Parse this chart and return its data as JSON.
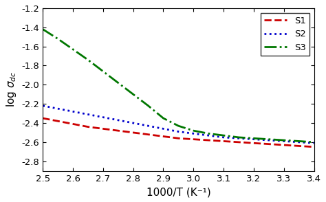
{
  "xlabel": "1000/T (K⁻¹)",
  "ylabel": "log σ_{dc}",
  "xlim": [
    2.5,
    3.4
  ],
  "ylim": [
    -2.9,
    -1.2
  ],
  "xticks": [
    2.5,
    2.6,
    2.7,
    2.8,
    2.9,
    3.0,
    3.1,
    3.2,
    3.3,
    3.4
  ],
  "yticks": [
    -2.8,
    -2.6,
    -2.4,
    -2.2,
    -2.0,
    -1.8,
    -1.6,
    -1.4,
    -1.2
  ],
  "S1": {
    "x": [
      2.5,
      2.55,
      2.6,
      2.65,
      2.7,
      2.75,
      2.8,
      2.85,
      2.9,
      2.95,
      3.0,
      3.05,
      3.1,
      3.15,
      3.2,
      3.25,
      3.3,
      3.35,
      3.4
    ],
    "y": [
      -2.35,
      -2.38,
      -2.41,
      -2.44,
      -2.46,
      -2.48,
      -2.5,
      -2.52,
      -2.54,
      -2.56,
      -2.57,
      -2.58,
      -2.59,
      -2.6,
      -2.61,
      -2.62,
      -2.63,
      -2.64,
      -2.65
    ],
    "color": "#cc0000",
    "linewidth": 2.0,
    "label": "S1"
  },
  "S2": {
    "x": [
      2.5,
      2.55,
      2.6,
      2.65,
      2.7,
      2.75,
      2.8,
      2.85,
      2.9,
      2.95,
      3.0,
      3.05,
      3.1,
      3.15,
      3.2,
      3.25,
      3.3,
      3.35,
      3.4
    ],
    "y": [
      -2.22,
      -2.25,
      -2.28,
      -2.31,
      -2.34,
      -2.37,
      -2.4,
      -2.43,
      -2.46,
      -2.49,
      -2.51,
      -2.53,
      -2.55,
      -2.56,
      -2.57,
      -2.58,
      -2.59,
      -2.6,
      -2.61
    ],
    "color": "#0000cc",
    "linewidth": 2.0,
    "label": "S2"
  },
  "S3": {
    "x": [
      2.5,
      2.55,
      2.6,
      2.65,
      2.7,
      2.75,
      2.8,
      2.85,
      2.9,
      2.95,
      3.0,
      3.05,
      3.1,
      3.15,
      3.2,
      3.25,
      3.3,
      3.35,
      3.4
    ],
    "y": [
      -1.42,
      -1.52,
      -1.63,
      -1.74,
      -1.86,
      -1.98,
      -2.1,
      -2.22,
      -2.35,
      -2.43,
      -2.48,
      -2.51,
      -2.53,
      -2.55,
      -2.56,
      -2.57,
      -2.58,
      -2.59,
      -2.6
    ],
    "color": "#007700",
    "linewidth": 2.0,
    "label": "S3"
  },
  "background_color": "#ffffff",
  "legend_loc": "upper right",
  "font_size": 11
}
